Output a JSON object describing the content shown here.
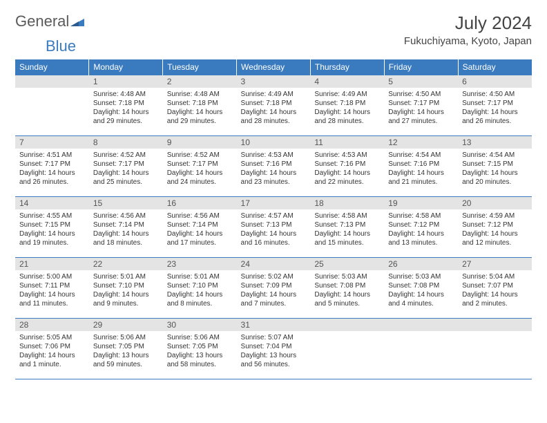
{
  "logo": {
    "text1": "General",
    "text2": "Blue"
  },
  "title": "July 2024",
  "location": "Fukuchiyama, Kyoto, Japan",
  "colors": {
    "header_bg": "#3a7bbf",
    "header_text": "#ffffff",
    "daynum_bg": "#e4e4e4",
    "border": "#3a7bbf",
    "body_text": "#333333",
    "title_text": "#444444"
  },
  "day_labels": [
    "Sunday",
    "Monday",
    "Tuesday",
    "Wednesday",
    "Thursday",
    "Friday",
    "Saturday"
  ],
  "weeks": [
    [
      {
        "n": "",
        "empty": true
      },
      {
        "n": "1",
        "sunrise": "4:48 AM",
        "sunset": "7:18 PM",
        "daylight": "14 hours and 29 minutes."
      },
      {
        "n": "2",
        "sunrise": "4:48 AM",
        "sunset": "7:18 PM",
        "daylight": "14 hours and 29 minutes."
      },
      {
        "n": "3",
        "sunrise": "4:49 AM",
        "sunset": "7:18 PM",
        "daylight": "14 hours and 28 minutes."
      },
      {
        "n": "4",
        "sunrise": "4:49 AM",
        "sunset": "7:18 PM",
        "daylight": "14 hours and 28 minutes."
      },
      {
        "n": "5",
        "sunrise": "4:50 AM",
        "sunset": "7:17 PM",
        "daylight": "14 hours and 27 minutes."
      },
      {
        "n": "6",
        "sunrise": "4:50 AM",
        "sunset": "7:17 PM",
        "daylight": "14 hours and 26 minutes."
      }
    ],
    [
      {
        "n": "7",
        "sunrise": "4:51 AM",
        "sunset": "7:17 PM",
        "daylight": "14 hours and 26 minutes."
      },
      {
        "n": "8",
        "sunrise": "4:52 AM",
        "sunset": "7:17 PM",
        "daylight": "14 hours and 25 minutes."
      },
      {
        "n": "9",
        "sunrise": "4:52 AM",
        "sunset": "7:17 PM",
        "daylight": "14 hours and 24 minutes."
      },
      {
        "n": "10",
        "sunrise": "4:53 AM",
        "sunset": "7:16 PM",
        "daylight": "14 hours and 23 minutes."
      },
      {
        "n": "11",
        "sunrise": "4:53 AM",
        "sunset": "7:16 PM",
        "daylight": "14 hours and 22 minutes."
      },
      {
        "n": "12",
        "sunrise": "4:54 AM",
        "sunset": "7:16 PM",
        "daylight": "14 hours and 21 minutes."
      },
      {
        "n": "13",
        "sunrise": "4:54 AM",
        "sunset": "7:15 PM",
        "daylight": "14 hours and 20 minutes."
      }
    ],
    [
      {
        "n": "14",
        "sunrise": "4:55 AM",
        "sunset": "7:15 PM",
        "daylight": "14 hours and 19 minutes."
      },
      {
        "n": "15",
        "sunrise": "4:56 AM",
        "sunset": "7:14 PM",
        "daylight": "14 hours and 18 minutes."
      },
      {
        "n": "16",
        "sunrise": "4:56 AM",
        "sunset": "7:14 PM",
        "daylight": "14 hours and 17 minutes."
      },
      {
        "n": "17",
        "sunrise": "4:57 AM",
        "sunset": "7:13 PM",
        "daylight": "14 hours and 16 minutes."
      },
      {
        "n": "18",
        "sunrise": "4:58 AM",
        "sunset": "7:13 PM",
        "daylight": "14 hours and 15 minutes."
      },
      {
        "n": "19",
        "sunrise": "4:58 AM",
        "sunset": "7:12 PM",
        "daylight": "14 hours and 13 minutes."
      },
      {
        "n": "20",
        "sunrise": "4:59 AM",
        "sunset": "7:12 PM",
        "daylight": "14 hours and 12 minutes."
      }
    ],
    [
      {
        "n": "21",
        "sunrise": "5:00 AM",
        "sunset": "7:11 PM",
        "daylight": "14 hours and 11 minutes."
      },
      {
        "n": "22",
        "sunrise": "5:01 AM",
        "sunset": "7:10 PM",
        "daylight": "14 hours and 9 minutes."
      },
      {
        "n": "23",
        "sunrise": "5:01 AM",
        "sunset": "7:10 PM",
        "daylight": "14 hours and 8 minutes."
      },
      {
        "n": "24",
        "sunrise": "5:02 AM",
        "sunset": "7:09 PM",
        "daylight": "14 hours and 7 minutes."
      },
      {
        "n": "25",
        "sunrise": "5:03 AM",
        "sunset": "7:08 PM",
        "daylight": "14 hours and 5 minutes."
      },
      {
        "n": "26",
        "sunrise": "5:03 AM",
        "sunset": "7:08 PM",
        "daylight": "14 hours and 4 minutes."
      },
      {
        "n": "27",
        "sunrise": "5:04 AM",
        "sunset": "7:07 PM",
        "daylight": "14 hours and 2 minutes."
      }
    ],
    [
      {
        "n": "28",
        "sunrise": "5:05 AM",
        "sunset": "7:06 PM",
        "daylight": "14 hours and 1 minute."
      },
      {
        "n": "29",
        "sunrise": "5:06 AM",
        "sunset": "7:05 PM",
        "daylight": "13 hours and 59 minutes."
      },
      {
        "n": "30",
        "sunrise": "5:06 AM",
        "sunset": "7:05 PM",
        "daylight": "13 hours and 58 minutes."
      },
      {
        "n": "31",
        "sunrise": "5:07 AM",
        "sunset": "7:04 PM",
        "daylight": "13 hours and 56 minutes."
      },
      {
        "n": "",
        "empty": true
      },
      {
        "n": "",
        "empty": true
      },
      {
        "n": "",
        "empty": true
      }
    ]
  ],
  "labels": {
    "sunrise_prefix": "Sunrise: ",
    "sunset_prefix": "Sunset: ",
    "daylight_prefix": "Daylight: "
  }
}
